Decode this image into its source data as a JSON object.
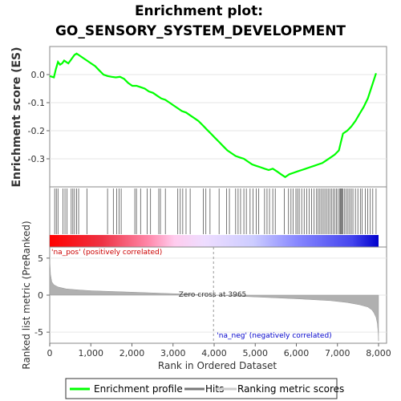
{
  "chart_data": {
    "type": "line",
    "title": "Enrichment plot:",
    "subtitle": "GO_SENSORY_SYSTEM_DEVELOPMENT",
    "es_panel": {
      "ylabel": "Enrichment score (ES)",
      "ylim": [
        -0.4,
        0.1
      ],
      "yticks": [
        0.0,
        -0.1,
        -0.2,
        -0.3
      ],
      "series": {
        "name": "Enrichment profile",
        "color": "#00ff00",
        "x": [
          0,
          100,
          150,
          200,
          250,
          300,
          350,
          400,
          450,
          500,
          550,
          600,
          650,
          700,
          800,
          900,
          1000,
          1100,
          1200,
          1300,
          1400,
          1500,
          1600,
          1700,
          1800,
          1900,
          2000,
          2100,
          2200,
          2300,
          2400,
          2500,
          2600,
          2700,
          2800,
          2900,
          3000,
          3100,
          3200,
          3300,
          3400,
          3500,
          3600,
          3700,
          3800,
          3900,
          4000,
          4100,
          4200,
          4300,
          4400,
          4500,
          4600,
          4700,
          4800,
          4900,
          5000,
          5100,
          5200,
          5300,
          5400,
          5500,
          5600,
          5700,
          5750,
          5800,
          5900,
          6000,
          6100,
          6200,
          6300,
          6400,
          6500,
          6600,
          6700,
          6800,
          6900,
          7000,
          7050,
          7100,
          7200,
          7300,
          7400,
          7500,
          7600,
          7700,
          7800,
          7900
        ],
        "y": [
          -0.005,
          -0.01,
          0.02,
          0.045,
          0.035,
          0.04,
          0.05,
          0.045,
          0.04,
          0.05,
          0.06,
          0.07,
          0.075,
          0.07,
          0.06,
          0.05,
          0.04,
          0.03,
          0.015,
          0.0,
          -0.005,
          -0.008,
          -0.01,
          -0.008,
          -0.015,
          -0.03,
          -0.04,
          -0.04,
          -0.045,
          -0.05,
          -0.06,
          -0.065,
          -0.075,
          -0.085,
          -0.09,
          -0.1,
          -0.11,
          -0.12,
          -0.13,
          -0.135,
          -0.145,
          -0.155,
          -0.165,
          -0.18,
          -0.195,
          -0.21,
          -0.225,
          -0.24,
          -0.255,
          -0.27,
          -0.28,
          -0.29,
          -0.295,
          -0.3,
          -0.31,
          -0.32,
          -0.325,
          -0.33,
          -0.335,
          -0.34,
          -0.335,
          -0.345,
          -0.355,
          -0.365,
          -0.36,
          -0.355,
          -0.35,
          -0.345,
          -0.34,
          -0.335,
          -0.33,
          -0.325,
          -0.32,
          -0.315,
          -0.305,
          -0.295,
          -0.285,
          -0.27,
          -0.24,
          -0.21,
          -0.2,
          -0.185,
          -0.165,
          -0.14,
          -0.115,
          -0.085,
          -0.04,
          0.005
        ]
      }
    },
    "hits": {
      "name": "Hits",
      "positions": [
        120,
        160,
        200,
        320,
        370,
        420,
        520,
        560,
        600,
        650,
        700,
        900,
        1400,
        1540,
        1620,
        1680,
        1730,
        2060,
        2100,
        2200,
        2360,
        2440,
        2640,
        2680,
        2800,
        3100,
        3160,
        3220,
        3300,
        3400,
        3720,
        3780,
        3880,
        4100,
        4280,
        4350,
        4500,
        4560,
        4620,
        4700,
        4760,
        4850,
        4920,
        5000,
        5060,
        5200,
        5260,
        5320,
        5400,
        5460,
        5680,
        5780,
        5840,
        5890,
        5960,
        6000,
        6040,
        6100,
        6160,
        6220,
        6280,
        6340,
        6400,
        6460,
        6500,
        6540,
        6580,
        6620,
        6660,
        6700,
        6740,
        6780,
        6820,
        6860,
        6900,
        6940,
        6980,
        7020,
        7040,
        7060,
        7080,
        7100,
        7140,
        7180,
        7220,
        7260,
        7300,
        7340,
        7400,
        7460,
        7520,
        7560,
        7640,
        7700,
        7760,
        7820,
        7900
      ]
    },
    "rank_metric": {
      "name": "Ranking metric scores",
      "xlabel": "Rank in Ordered Dataset",
      "ylabel": "Ranked list metric (PreRanked)",
      "ylim": [
        -6.5,
        6.5
      ],
      "yticks": [
        5,
        0,
        -5
      ],
      "xlim": [
        0,
        8000
      ],
      "xticks": [
        0,
        1000,
        2000,
        3000,
        4000,
        5000,
        6000,
        7000,
        8000
      ],
      "xticklabels": [
        "0",
        "1,000",
        "2,000",
        "3,000",
        "4,000",
        "5,000",
        "6,000",
        "7,000",
        "8,000"
      ],
      "x": [
        0,
        20,
        50,
        100,
        200,
        400,
        700,
        1000,
        2000,
        3000,
        3965,
        5000,
        6000,
        6800,
        7200,
        7500,
        7700,
        7800,
        7850,
        7900,
        7930,
        7950,
        7960
      ],
      "y": [
        4.8,
        2.8,
        1.8,
        1.4,
        1.1,
        0.85,
        0.7,
        0.6,
        0.4,
        0.2,
        0.0,
        -0.25,
        -0.5,
        -0.75,
        -1.0,
        -1.3,
        -1.6,
        -2.0,
        -2.4,
        -3.0,
        -3.8,
        -5.0,
        -6.2
      ],
      "zero_cross_label": "Zero cross at 3965",
      "zero_cross": 3965,
      "pos_label": "'na_pos' (positively correlated)",
      "neg_label": "'na_neg' (negatively correlated)"
    },
    "legend": {
      "placement": "bottom",
      "items": [
        {
          "label": "Enrichment profile",
          "color": "#00ff00"
        },
        {
          "label": "Hits",
          "color": "#777777"
        },
        {
          "label": "Ranking metric scores",
          "color": "#cccccc"
        }
      ]
    }
  }
}
